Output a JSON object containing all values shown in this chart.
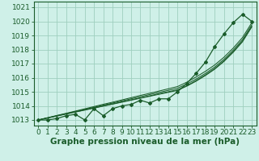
{
  "xlabel": "Graphe pression niveau de la mer (hPa)",
  "bg_color": "#cff0e8",
  "grid_color": "#9ecfbf",
  "line_color": "#1a5c2a",
  "x": [
    0,
    1,
    2,
    3,
    4,
    5,
    6,
    7,
    8,
    9,
    10,
    11,
    12,
    13,
    14,
    15,
    16,
    17,
    18,
    19,
    20,
    21,
    22,
    23
  ],
  "y_main": [
    1013.0,
    1013.0,
    1013.1,
    1013.3,
    1013.4,
    1013.0,
    1013.8,
    1013.3,
    1013.8,
    1014.0,
    1014.1,
    1014.4,
    1014.2,
    1014.5,
    1014.5,
    1015.0,
    1015.6,
    1016.3,
    1017.1,
    1018.2,
    1019.1,
    1019.9,
    1020.5,
    1020.0
  ],
  "y_linear1": [
    1013.0,
    1013.14,
    1013.28,
    1013.42,
    1013.56,
    1013.7,
    1013.84,
    1013.98,
    1014.12,
    1014.26,
    1014.4,
    1014.54,
    1014.68,
    1014.82,
    1014.96,
    1015.1,
    1015.4,
    1015.75,
    1016.15,
    1016.6,
    1017.15,
    1017.8,
    1018.55,
    1019.6
  ],
  "y_linear2": [
    1013.0,
    1013.14,
    1013.28,
    1013.43,
    1013.57,
    1013.71,
    1013.86,
    1014.0,
    1014.14,
    1014.29,
    1014.43,
    1014.57,
    1014.71,
    1014.86,
    1015.0,
    1015.14,
    1015.43,
    1015.8,
    1016.2,
    1016.65,
    1017.2,
    1017.85,
    1018.6,
    1019.65
  ],
  "y_linear3": [
    1013.0,
    1013.15,
    1013.3,
    1013.45,
    1013.6,
    1013.75,
    1013.9,
    1014.05,
    1014.2,
    1014.35,
    1014.5,
    1014.65,
    1014.8,
    1014.95,
    1015.1,
    1015.25,
    1015.55,
    1015.9,
    1016.3,
    1016.75,
    1017.3,
    1017.95,
    1018.7,
    1019.75
  ],
  "y_linear4": [
    1013.0,
    1013.16,
    1013.32,
    1013.47,
    1013.63,
    1013.79,
    1013.95,
    1014.11,
    1014.26,
    1014.42,
    1014.58,
    1014.74,
    1014.89,
    1015.05,
    1015.21,
    1015.37,
    1015.68,
    1016.05,
    1016.45,
    1016.9,
    1017.45,
    1018.1,
    1018.85,
    1019.9
  ],
  "ylim_min": 1012.6,
  "ylim_max": 1021.4,
  "xlim_min": -0.5,
  "xlim_max": 23.5,
  "yticks": [
    1013,
    1014,
    1015,
    1016,
    1017,
    1018,
    1019,
    1020,
    1021
  ],
  "xticks": [
    0,
    1,
    2,
    3,
    4,
    5,
    6,
    7,
    8,
    9,
    10,
    11,
    12,
    13,
    14,
    15,
    16,
    17,
    18,
    19,
    20,
    21,
    22,
    23
  ],
  "tick_fontsize": 6.5,
  "xlabel_fontsize": 7.5
}
